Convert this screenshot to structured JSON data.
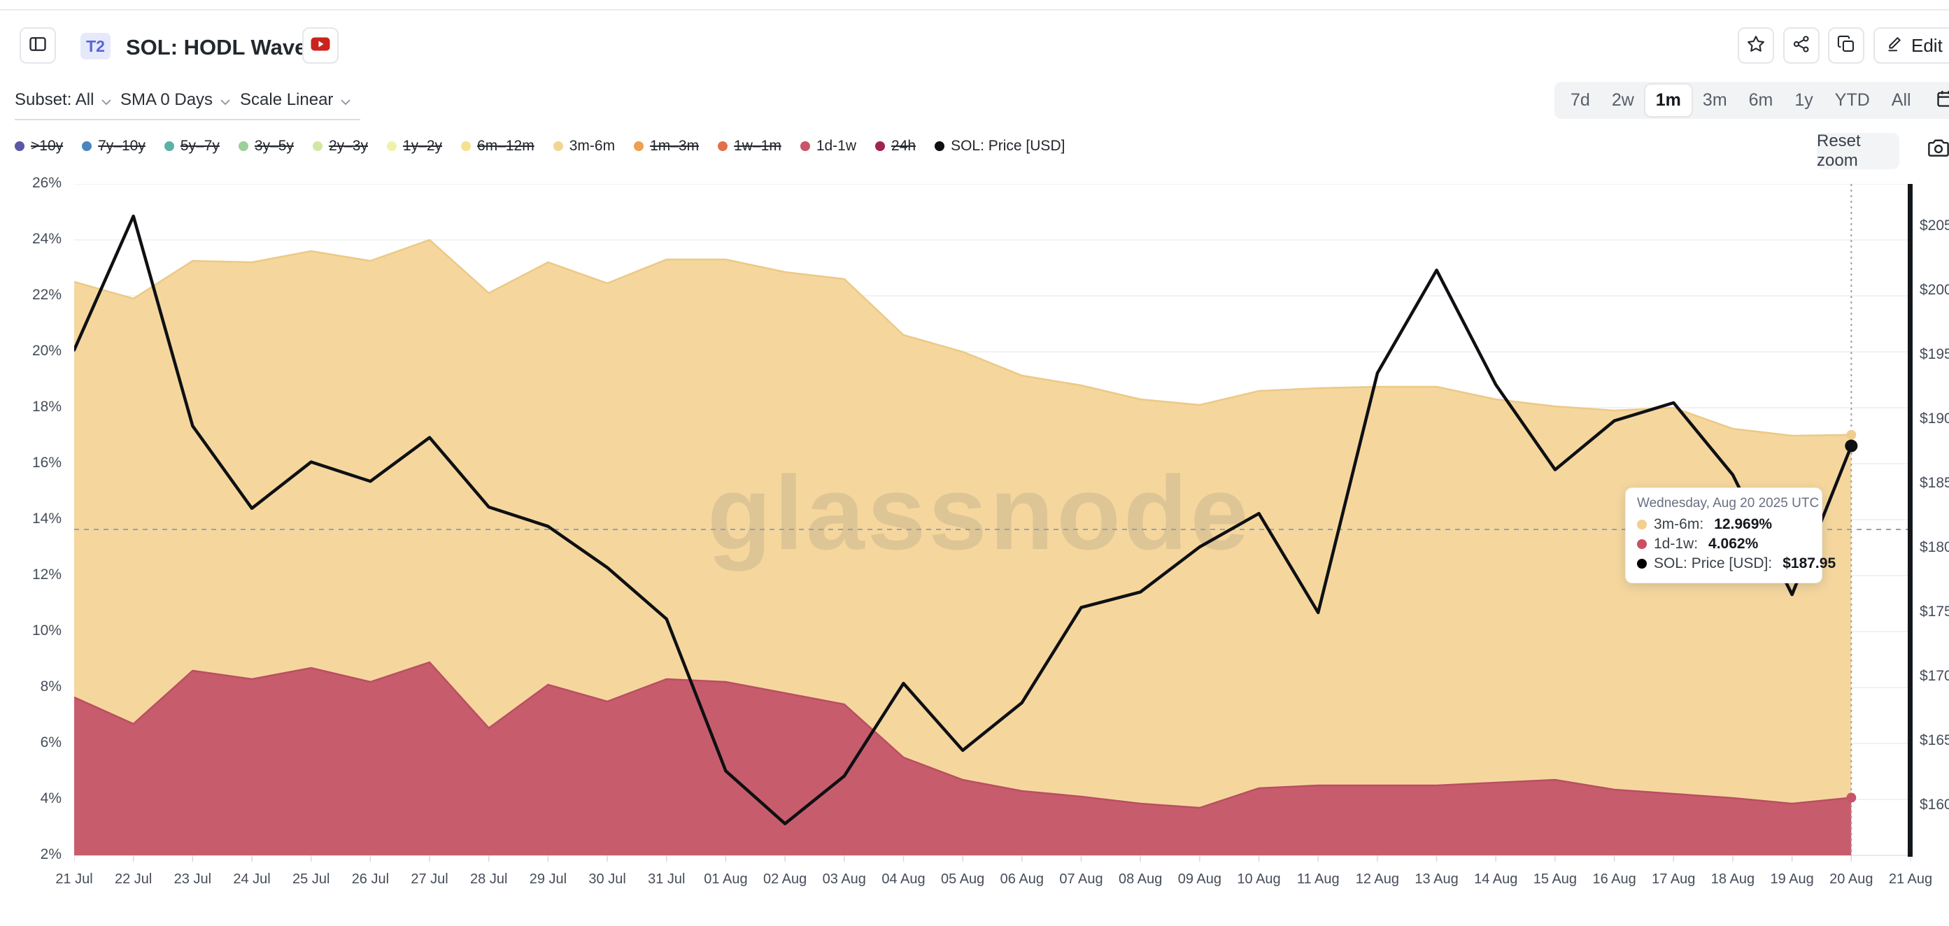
{
  "header": {
    "badge": "T2",
    "title": "SOL: HODL Waves",
    "edit_label": "Edit"
  },
  "controls": {
    "subset": "Subset: All",
    "sma": "SMA 0 Days",
    "scale": "Scale Linear"
  },
  "toolbar": {
    "ranges": [
      "7d",
      "2w",
      "1m",
      "3m",
      "6m",
      "1y",
      "YTD",
      "All"
    ],
    "active_range": "1m",
    "reset_zoom_label": "Reset zoom"
  },
  "legend": [
    {
      "label": ">10y",
      "color": "#5b57a5",
      "active": false
    },
    {
      "label": "7y–10y",
      "color": "#4a86bc",
      "active": false
    },
    {
      "label": "5y–7y",
      "color": "#59b2a8",
      "active": false
    },
    {
      "label": "3y–5y",
      "color": "#9ccf9b",
      "active": false
    },
    {
      "label": "2y–3y",
      "color": "#d3e7a2",
      "active": false
    },
    {
      "label": "1y–2y",
      "color": "#f0f2ac",
      "active": false
    },
    {
      "label": "6m–12m",
      "color": "#f7e18f",
      "active": false
    },
    {
      "label": "3m-6m",
      "color": "#f4d496",
      "active": true
    },
    {
      "label": "1m–3m",
      "color": "#eda04f",
      "active": false
    },
    {
      "label": "1w–1m",
      "color": "#e1714d",
      "active": false
    },
    {
      "label": "1d-1w",
      "color": "#cb5468",
      "active": true
    },
    {
      "label": "24h",
      "color": "#a02351",
      "active": false
    },
    {
      "label": "SOL: Price [USD]",
      "color": "#0d0f12",
      "active": true
    }
  ],
  "tooltip": {
    "title": "Wednesday, Aug 20 2025 UTC",
    "rows": [
      {
        "label": "3m-6m",
        "value": "12.969%",
        "color": "#f2cf8d"
      },
      {
        "label": "1d-1w",
        "value": "4.062%",
        "color": "#cb4f63"
      },
      {
        "label": "SOL: Price [USD]",
        "value": "$187.95",
        "color": "#000000"
      }
    ]
  },
  "chart_data": {
    "type": "mixed",
    "title": "SOL: HODL Waves",
    "watermark": "glassnode",
    "x_labels": [
      "21 Jul",
      "22 Jul",
      "23 Jul",
      "24 Jul",
      "25 Jul",
      "26 Jul",
      "27 Jul",
      "28 Jul",
      "29 Jul",
      "30 Jul",
      "31 Jul",
      "01 Aug",
      "02 Aug",
      "03 Aug",
      "04 Aug",
      "05 Aug",
      "06 Aug",
      "07 Aug",
      "08 Aug",
      "09 Aug",
      "10 Aug",
      "11 Aug",
      "12 Aug",
      "13 Aug",
      "14 Aug",
      "15 Aug",
      "16 Aug",
      "17 Aug",
      "18 Aug",
      "19 Aug",
      "20 Aug",
      "21 Aug"
    ],
    "dates": [
      "21 Jul",
      "22 Jul",
      "23 Jul",
      "24 Jul",
      "25 Jul",
      "26 Jul",
      "27 Jul",
      "28 Jul",
      "29 Jul",
      "30 Jul",
      "31 Jul",
      "01 Aug",
      "02 Aug",
      "03 Aug",
      "04 Aug",
      "05 Aug",
      "06 Aug",
      "07 Aug",
      "08 Aug",
      "09 Aug",
      "10 Aug",
      "11 Aug",
      "12 Aug",
      "13 Aug",
      "14 Aug",
      "15 Aug",
      "16 Aug",
      "17 Aug",
      "18 Aug",
      "19 Aug",
      "20 Aug"
    ],
    "left_axis": {
      "unit": "%",
      "min": 2,
      "max": 26,
      "ticks": [
        2,
        4,
        6,
        8,
        10,
        12,
        14,
        16,
        18,
        20,
        22,
        24,
        26
      ]
    },
    "right_axis": {
      "unit": "USD",
      "ticks": [
        160,
        165,
        170,
        175,
        180,
        185,
        190,
        195,
        200,
        205
      ],
      "bottom_value": 156.14,
      "top_value": 208.3
    },
    "crosshair": {
      "day_index": 30,
      "pct": 13.65
    },
    "series": [
      {
        "id": "3m-6m",
        "name": "3m-6m",
        "type": "area",
        "stack": true,
        "color": "#f5d79e",
        "edge": "#ecc985",
        "values": [
          14.85,
          15.2,
          14.65,
          14.9,
          14.9,
          15.05,
          15.1,
          15.55,
          15.1,
          14.95,
          15.0,
          15.1,
          15.05,
          15.2,
          15.1,
          15.3,
          14.85,
          14.7,
          14.45,
          14.4,
          14.2,
          14.2,
          14.25,
          14.25,
          13.7,
          13.35,
          13.55,
          13.8,
          13.2,
          13.15,
          12.969
        ]
      },
      {
        "id": "1d-1w",
        "name": "1d-1w",
        "type": "area",
        "stack": true,
        "color": "#c75d6c",
        "edge": "#b94f62",
        "values": [
          7.65,
          6.7,
          8.6,
          8.3,
          8.7,
          8.2,
          8.9,
          6.55,
          8.1,
          7.5,
          8.3,
          8.2,
          7.8,
          7.4,
          5.5,
          4.7,
          4.3,
          4.1,
          3.85,
          3.7,
          4.4,
          4.5,
          4.5,
          4.5,
          4.6,
          4.7,
          4.35,
          4.2,
          4.05,
          3.85,
          4.062
        ]
      },
      {
        "id": "price",
        "name": "SOL: Price [USD]",
        "type": "line",
        "axis": "right",
        "color": "#0e1013",
        "values": [
          195.4,
          205.8,
          189.5,
          183.1,
          186.7,
          185.2,
          188.6,
          183.2,
          181.7,
          178.5,
          174.5,
          162.7,
          158.6,
          162.3,
          169.5,
          164.3,
          168.0,
          175.4,
          176.6,
          180.1,
          182.7,
          175.0,
          193.6,
          201.6,
          192.7,
          186.1,
          189.9,
          191.3,
          185.7,
          176.4,
          187.95
        ]
      }
    ]
  }
}
